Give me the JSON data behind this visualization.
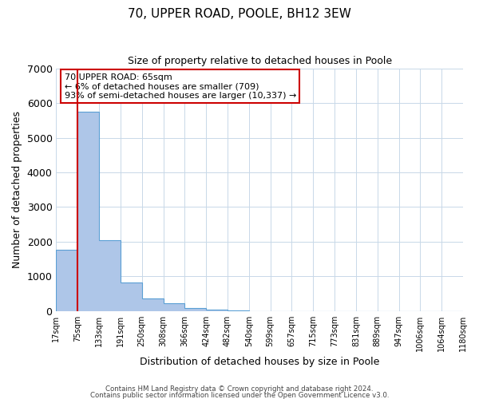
{
  "title": "70, UPPER ROAD, POOLE, BH12 3EW",
  "subtitle": "Size of property relative to detached houses in Poole",
  "xlabel": "Distribution of detached houses by size in Poole",
  "ylabel": "Number of detached properties",
  "bar_values": [
    1780,
    5750,
    2050,
    820,
    370,
    220,
    100,
    50,
    20,
    10,
    5,
    0,
    0,
    0,
    0,
    0,
    0,
    0,
    0
  ],
  "tick_labels": [
    "17sqm",
    "75sqm",
    "133sqm",
    "191sqm",
    "250sqm",
    "308sqm",
    "366sqm",
    "424sqm",
    "482sqm",
    "540sqm",
    "599sqm",
    "657sqm",
    "715sqm",
    "773sqm",
    "831sqm",
    "889sqm",
    "947sqm",
    "1006sqm",
    "1064sqm",
    "1180sqm"
  ],
  "ylim": [
    0,
    7000
  ],
  "yticks": [
    0,
    1000,
    2000,
    3000,
    4000,
    5000,
    6000,
    7000
  ],
  "bar_color": "#aec6e8",
  "bar_edge_color": "#5a9fd4",
  "vline_color": "#cc0000",
  "annotation_box_text": "70 UPPER ROAD: 65sqm\n← 6% of detached houses are smaller (709)\n93% of semi-detached houses are larger (10,337) →",
  "annotation_box_color": "#ffffff",
  "annotation_box_edge_color": "#cc0000",
  "footer_line1": "Contains HM Land Registry data © Crown copyright and database right 2024.",
  "footer_line2": "Contains public sector information licensed under the Open Government Licence v3.0.",
  "background_color": "#ffffff",
  "grid_color": "#c8d8e8"
}
